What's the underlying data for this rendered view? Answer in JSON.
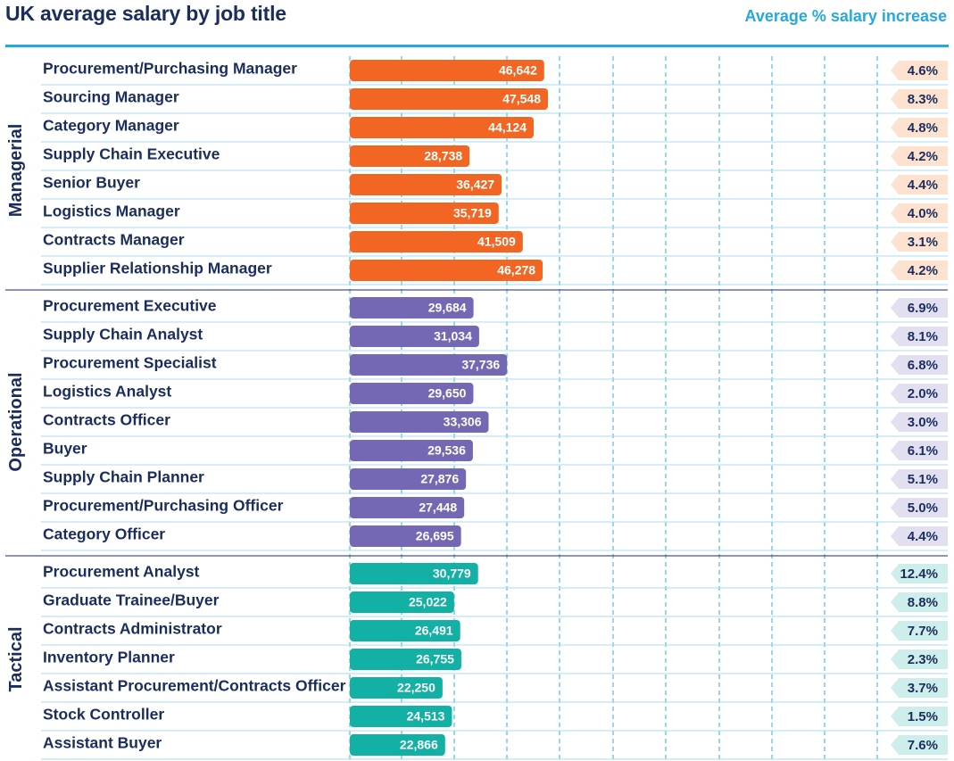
{
  "header": {
    "title": "UK average salary by job title",
    "increase_label": "Average % salary increase"
  },
  "colors": {
    "text": "#1b2d5c",
    "accent": "#26a9d8",
    "Managerial": "#f26522",
    "Managerial_pct_bg": "#fde2cf",
    "Operational": "#7468b4",
    "Operational_pct_bg": "#e2dff0",
    "Tactical": "#12b0a5",
    "Tactical_pct_bg": "#cdeeea"
  },
  "chart_data": {
    "type": "bar",
    "orientation": "horizontal",
    "title": "UK average salary by job title",
    "secondary_label": "Average % salary increase",
    "xlim": [
      0,
      100000
    ],
    "grid": true,
    "groups": [
      {
        "name": "Managerial",
        "rows": [
          {
            "label": "Procurement/Purchasing Manager",
            "salary": 46642,
            "salary_label": "46,642",
            "increase": "4.6%"
          },
          {
            "label": "Sourcing Manager",
            "salary": 47548,
            "salary_label": "47,548",
            "increase": "8.3%"
          },
          {
            "label": "Category Manager",
            "salary": 44124,
            "salary_label": "44,124",
            "increase": "4.8%"
          },
          {
            "label": "Supply Chain Executive",
            "salary": 28738,
            "salary_label": "28,738",
            "increase": "4.2%"
          },
          {
            "label": "Senior Buyer",
            "salary": 36427,
            "salary_label": "36,427",
            "increase": "4.4%"
          },
          {
            "label": "Logistics Manager",
            "salary": 35719,
            "salary_label": "35,719",
            "increase": "4.0%"
          },
          {
            "label": "Contracts Manager",
            "salary": 41509,
            "salary_label": "41,509",
            "increase": "3.1%"
          },
          {
            "label": "Supplier Relationship Manager",
            "salary": 46278,
            "salary_label": "46,278",
            "increase": "4.2%"
          }
        ]
      },
      {
        "name": "Operational",
        "rows": [
          {
            "label": "Procurement Executive",
            "salary": 29684,
            "salary_label": "29,684",
            "increase": "6.9%"
          },
          {
            "label": "Supply Chain Analyst",
            "salary": 31034,
            "salary_label": "31,034",
            "increase": "8.1%"
          },
          {
            "label": "Procurement Specialist",
            "salary": 37736,
            "salary_label": "37,736",
            "increase": "6.8%"
          },
          {
            "label": "Logistics Analyst",
            "salary": 29650,
            "salary_label": "29,650",
            "increase": "2.0%"
          },
          {
            "label": "Contracts Officer",
            "salary": 33306,
            "salary_label": "33,306",
            "increase": "3.0%"
          },
          {
            "label": "Buyer",
            "salary": 29536,
            "salary_label": "29,536",
            "increase": "6.1%"
          },
          {
            "label": "Supply Chain Planner",
            "salary": 27876,
            "salary_label": "27,876",
            "increase": "5.1%"
          },
          {
            "label": "Procurement/Purchasing Officer",
            "salary": 27448,
            "salary_label": "27,448",
            "increase": "5.0%"
          },
          {
            "label": "Category Officer",
            "salary": 26695,
            "salary_label": "26,695",
            "increase": "4.4%"
          }
        ]
      },
      {
        "name": "Tactical",
        "rows": [
          {
            "label": "Procurement Analyst",
            "salary": 30779,
            "salary_label": "30,779",
            "increase": "12.4%"
          },
          {
            "label": "Graduate Trainee/Buyer",
            "salary": 25022,
            "salary_label": "25,022",
            "increase": "8.8%"
          },
          {
            "label": "Contracts Administrator",
            "salary": 26491,
            "salary_label": "26,491",
            "increase": "7.7%"
          },
          {
            "label": "Inventory Planner",
            "salary": 26755,
            "salary_label": "26,755",
            "increase": "2.3%"
          },
          {
            "label": "Assistant Procurement/Contracts Officer",
            "salary": 22250,
            "salary_label": "22,250",
            "increase": "3.7%"
          },
          {
            "label": "Stock Controller",
            "salary": 24513,
            "salary_label": "24,513",
            "increase": "1.5%"
          },
          {
            "label": "Assistant Buyer",
            "salary": 22866,
            "salary_label": "22,866",
            "increase": "7.6%"
          }
        ]
      }
    ]
  }
}
